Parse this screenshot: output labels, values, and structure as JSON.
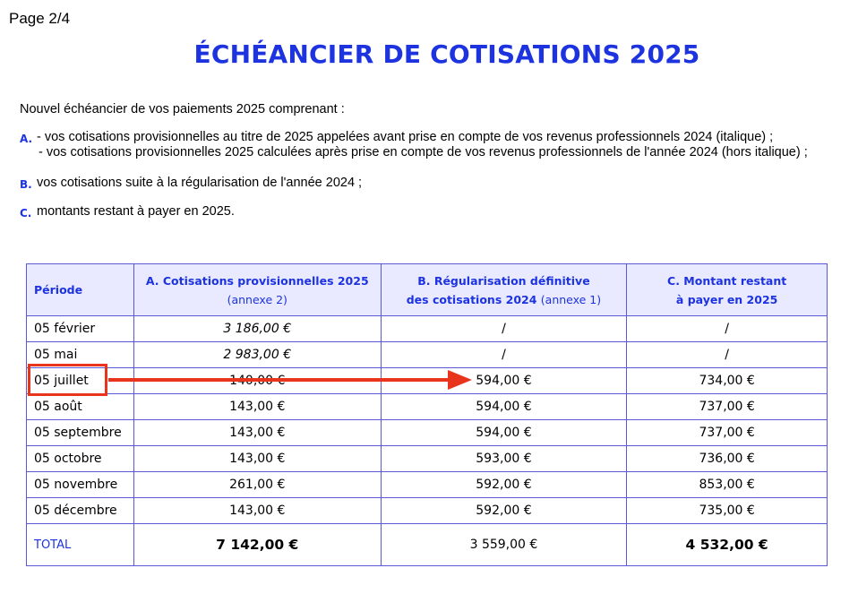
{
  "page_label": "Page 2/4",
  "title": "ÉCHÉANCIER DE COTISATIONS 2025",
  "intro": "Nouvel échéancier de vos paiements 2025 comprenant :",
  "items": {
    "a": {
      "letter": "A.",
      "line1": "- vos cotisations provisionnelles au titre de 2025 appelées avant prise en compte de vos revenus professionnels 2024 (italique) ;",
      "line2": "- vos cotisations provisionnelles 2025 calculées après prise en compte de vos revenus professionnels de l'année 2024 (hors italique) ;"
    },
    "b": {
      "letter": "B.",
      "text": "vos cotisations suite à la régularisation de l'année 2024 ;"
    },
    "c": {
      "letter": "C.",
      "text": "montants restant à payer en 2025."
    }
  },
  "table": {
    "header": {
      "periode": "Période",
      "a_line1": "A. Cotisations provisionnelles 2025",
      "a_line2": "(annexe 2)",
      "b_line1": "B. Régularisation définitive",
      "b_line2": "des cotisations  2024",
      "b_line2_note": "(annexe 1)",
      "c_line1": "C. Montant restant",
      "c_line2": "à payer en 2025"
    },
    "rows": [
      {
        "periode": "05 février",
        "a": "3 186,00 €",
        "b": "/",
        "c": "/"
      },
      {
        "periode": "05 mai",
        "a": "2 983,00 €",
        "b": "/",
        "c": "/"
      },
      {
        "periode": "05  juillet",
        "a": "140,00 €",
        "b": "594,00 €",
        "c": "734,00 €"
      },
      {
        "periode": "05  août",
        "a": "143,00 €",
        "b": "594,00 €",
        "c": "737,00 €"
      },
      {
        "periode": "05  septembre",
        "a": "143,00 €",
        "b": "594,00 €",
        "c": "737,00 €"
      },
      {
        "periode": "05  octobre",
        "a": "143,00 €",
        "b": "593,00 €",
        "c": "736,00 €"
      },
      {
        "periode": "05  novembre",
        "a": "261,00 €",
        "b": "592,00 €",
        "c": "853,00 €"
      },
      {
        "periode": "05  décembre",
        "a": "143,00 €",
        "b": "592,00 €",
        "c": "735,00 €"
      }
    ],
    "total": {
      "label": "TOTAL",
      "a": "7 142,00 €",
      "b": "3 559,00 €",
      "c": "4 532,00 €"
    }
  },
  "annotation": {
    "color": "#e8341c"
  }
}
